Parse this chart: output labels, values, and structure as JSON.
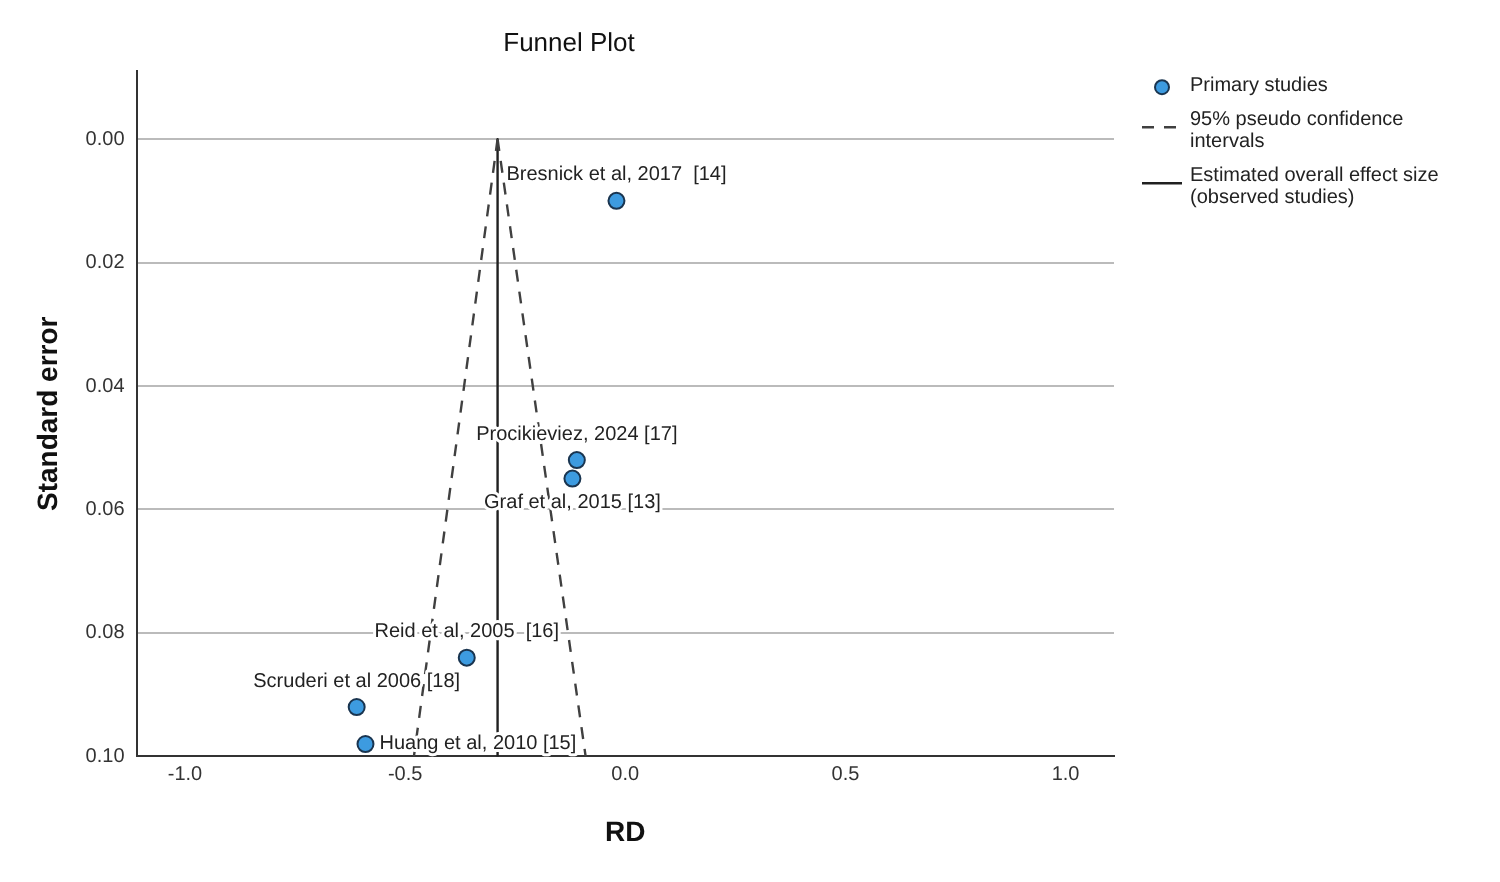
{
  "chart_data": {
    "type": "scatter",
    "title": "Funnel Plot",
    "xlabel": "RD",
    "ylabel": "Standard error",
    "xlim": [
      -1.11,
      1.11
    ],
    "xticks": [
      {
        "value": -1,
        "label": "-1.0"
      },
      -0.5,
      {
        "value": 0,
        "label": "0.0"
      },
      0.5,
      {
        "value": 1,
        "label": "1.0"
      }
    ],
    "ylim": [
      0.1,
      -0.011
    ],
    "yticks": [
      {
        "value": 0,
        "label": "0.00"
      },
      {
        "value": 0.02,
        "label": "0.02"
      },
      {
        "value": 0.04,
        "label": "0.04"
      },
      {
        "value": 0.06,
        "label": "0.06"
      },
      {
        "value": 0.08,
        "label": "0.08"
      },
      {
        "value": 0.1,
        "label": "0.10"
      }
    ],
    "grid": "y",
    "legend": "top right",
    "series": [
      {
        "name": "Primary studies",
        "type": "scatter",
        "color": "#3d9be0",
        "marker": "circle",
        "x": [
          -0.02,
          -0.11,
          -0.12,
          -0.36,
          -0.61,
          -0.59
        ],
        "values": [
          0.01,
          0.052,
          0.055,
          0.084,
          0.092,
          0.098
        ]
      },
      {
        "name": "95% pseudo confidence intervals",
        "type": "line",
        "color": "#404040",
        "line_style": "dashed",
        "marker": "none",
        "x": [
          -0.29,
          -0.48
        ],
        "values": [
          0,
          0.1
        ]
      },
      {
        "type": "line",
        "color": "#404040",
        "line_style": "dashed",
        "marker": "none",
        "x": [
          -0.29,
          -0.09
        ],
        "values": [
          0,
          0.1
        ]
      },
      {
        "name": "Estimated overall effect size (observed studies)",
        "type": "line",
        "color": "#202020",
        "line_style": "solid",
        "marker": "none",
        "x": [
          -0.29,
          -0.29
        ],
        "values": [
          0,
          0.1
        ]
      }
    ],
    "annotations": [
      {
        "text": "Bresnick et al, 2017  [14]",
        "x": -0.02,
        "y": 0.01
      },
      {
        "text": "Procikieviez, 2024 [17]",
        "x": -0.11,
        "y": 0.052
      },
      {
        "text": "Graf et al, 2015 [13]",
        "x": -0.12,
        "y": 0.055
      },
      {
        "text": "Reid et al, 2005  [16]",
        "x": -0.36,
        "y": 0.084
      },
      {
        "text": "Scruderi et al 2006 [18]",
        "x": -0.61,
        "y": 0.092
      },
      {
        "text": "Huang et al, 2010 [15]",
        "x": -0.59,
        "y": 0.098
      }
    ]
  }
}
